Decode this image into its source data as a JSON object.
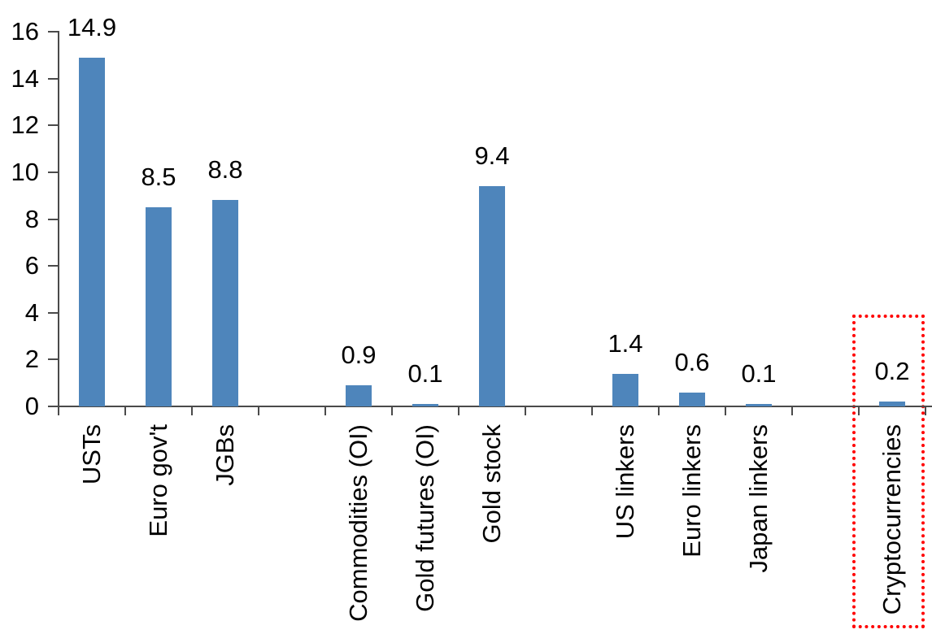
{
  "chart_data": {
    "type": "bar",
    "title": "",
    "xlabel": "",
    "ylabel": "",
    "categories": [
      "USTs",
      "Euro gov't",
      "JGBs",
      "Commodities (OI)",
      "Gold futures (OI)",
      "Gold stock",
      "US linkers",
      "Euro linkers",
      "Japan linkers",
      "Cryptocurrencies"
    ],
    "values": [
      14.9,
      8.5,
      8.8,
      0.9,
      0.1,
      9.4,
      1.4,
      0.6,
      0.1,
      0.2
    ],
    "data_labels": [
      "14.9",
      "8.5",
      "8.8",
      "0.9",
      "0.1",
      "9.4",
      "1.4",
      "0.6",
      "0.1",
      "0.2"
    ],
    "slot_indices": [
      1,
      2,
      3,
      5,
      6,
      7,
      9,
      10,
      11,
      13
    ],
    "total_slots": 13,
    "group_gaps_after": [
      "JGBs",
      "Gold stock",
      "Japan linkers"
    ],
    "y_axis": {
      "min": 0,
      "max": 16,
      "tick_step": 2,
      "tick_labels": [
        "0",
        "2",
        "4",
        "6",
        "8",
        "10",
        "12",
        "14",
        "16"
      ]
    },
    "grid": false,
    "legend": false,
    "category_label_rotation_deg": 90,
    "bar_color": "#4E85BB",
    "axis_color": "#4A4A4A",
    "text_color": "#000000",
    "highlight": {
      "category": "Cryptocurrencies",
      "value_label": "0.2",
      "style": "dotted-outline",
      "color": "#FF0000"
    }
  }
}
